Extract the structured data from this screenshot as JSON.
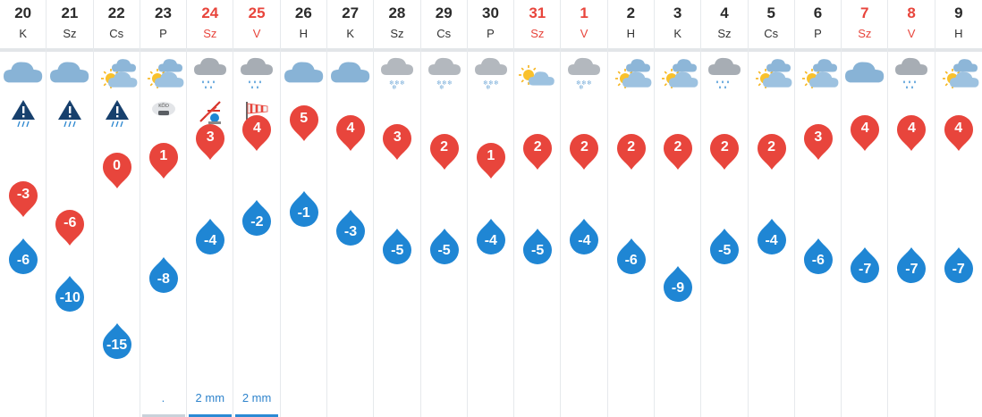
{
  "days": [
    {
      "date": "20",
      "dow": "K",
      "weekend": false,
      "icon": "cloudy",
      "alert": "thunderstorm-warning-icon",
      "max": "-3",
      "min": "-6",
      "precip": "",
      "bar": ""
    },
    {
      "date": "21",
      "dow": "Sz",
      "weekend": false,
      "icon": "cloudy",
      "alert": "thunderstorm-warning-icon",
      "max": "-6",
      "min": "-10",
      "precip": "",
      "bar": ""
    },
    {
      "date": "22",
      "dow": "Cs",
      "weekend": false,
      "icon": "sun-clouds",
      "alert": "thunderstorm-warning-icon",
      "max": "0",
      "min": "-15",
      "precip": "",
      "bar": ""
    },
    {
      "date": "23",
      "dow": "P",
      "weekend": false,
      "icon": "sun-clouds",
      "alert": "fog-warning-icon",
      "alert_text": "KÖD",
      "max": "1",
      "min": "-8",
      "precip": ".",
      "bar": "light"
    },
    {
      "date": "24",
      "dow": "Sz",
      "weekend": true,
      "icon": "rain-cloud",
      "alert": "storm-warning-icon",
      "max": "3",
      "min": "-4",
      "precip": "2 mm",
      "bar": "blue"
    },
    {
      "date": "25",
      "dow": "V",
      "weekend": true,
      "icon": "rain-cloud",
      "alert": "wind-warning-icon",
      "max": "4",
      "min": "-2",
      "precip": "2 mm",
      "bar": "blue"
    },
    {
      "date": "26",
      "dow": "H",
      "weekend": false,
      "icon": "cloudy",
      "alert": "",
      "max": "5",
      "min": "-1",
      "precip": "",
      "bar": ""
    },
    {
      "date": "27",
      "dow": "K",
      "weekend": false,
      "icon": "cloudy",
      "alert": "",
      "max": "4",
      "min": "-3",
      "precip": "",
      "bar": ""
    },
    {
      "date": "28",
      "dow": "Sz",
      "weekend": false,
      "icon": "snow-cloud",
      "alert": "",
      "max": "3",
      "min": "-5",
      "precip": "",
      "bar": ""
    },
    {
      "date": "29",
      "dow": "Cs",
      "weekend": false,
      "icon": "snow-cloud",
      "alert": "",
      "max": "2",
      "min": "-5",
      "precip": "",
      "bar": ""
    },
    {
      "date": "30",
      "dow": "P",
      "weekend": false,
      "icon": "snow-cloud",
      "alert": "",
      "max": "1",
      "min": "-4",
      "precip": "",
      "bar": ""
    },
    {
      "date": "31",
      "dow": "Sz",
      "weekend": true,
      "icon": "sun-cloud-small",
      "alert": "",
      "max": "2",
      "min": "-5",
      "precip": "",
      "bar": ""
    },
    {
      "date": "1",
      "dow": "V",
      "weekend": true,
      "icon": "snow-cloud",
      "alert": "",
      "max": "2",
      "min": "-4",
      "precip": "",
      "bar": ""
    },
    {
      "date": "2",
      "dow": "H",
      "weekend": false,
      "icon": "sun-clouds",
      "alert": "",
      "max": "2",
      "min": "-6",
      "precip": "",
      "bar": ""
    },
    {
      "date": "3",
      "dow": "K",
      "weekend": false,
      "icon": "sun-clouds",
      "alert": "",
      "max": "2",
      "min": "-9",
      "precip": "",
      "bar": ""
    },
    {
      "date": "4",
      "dow": "Sz",
      "weekend": false,
      "icon": "rain-cloud",
      "alert": "",
      "max": "2",
      "min": "-5",
      "precip": "",
      "bar": ""
    },
    {
      "date": "5",
      "dow": "Cs",
      "weekend": false,
      "icon": "sun-clouds",
      "alert": "",
      "max": "2",
      "min": "-4",
      "precip": "",
      "bar": ""
    },
    {
      "date": "6",
      "dow": "P",
      "weekend": false,
      "icon": "sun-clouds",
      "alert": "",
      "max": "3",
      "min": "-6",
      "precip": "",
      "bar": ""
    },
    {
      "date": "7",
      "dow": "Sz",
      "weekend": true,
      "icon": "cloudy",
      "alert": "",
      "max": "4",
      "min": "-7",
      "precip": "",
      "bar": ""
    },
    {
      "date": "8",
      "dow": "V",
      "weekend": true,
      "icon": "rain-cloud",
      "alert": "",
      "max": "4",
      "min": "-7",
      "precip": "",
      "bar": ""
    },
    {
      "date": "9",
      "dow": "H",
      "weekend": false,
      "icon": "sun-clouds",
      "alert": "",
      "max": "4",
      "min": "-7",
      "precip": "",
      "bar": ""
    }
  ],
  "colors": {
    "max_pin": "#e8453c",
    "min_pin": "#1f86d4",
    "weekend_text": "#e8453c",
    "precip_text": "#2f84cc"
  }
}
